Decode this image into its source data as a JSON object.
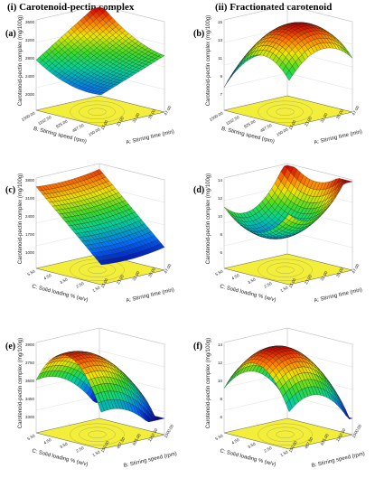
{
  "figure": {
    "col_left_title": "(i) Carotenoid-pectin complex",
    "col_right_title": "(ii) Fractionated carotenoid"
  },
  "chart_data": [
    {
      "panel": "(a)",
      "type": "surface",
      "zlabel": "Carotenoid-pectin complex (mg/100g)",
      "xlabel": "A: Stirring time (min)",
      "ylabel": "B: Stirring speed (rpm)",
      "z_ticks": [
        "2000",
        "2400",
        "2800",
        "3200",
        "3600"
      ],
      "x_ticks": [
        "15.00",
        "23.00",
        "31.00",
        "39.00",
        "47.00"
      ],
      "y_ticks": [
        "150.00",
        "487.50",
        "825.00",
        "1162.50",
        "1500.00"
      ],
      "shape": "saddle",
      "zlim": [
        1800,
        3700
      ],
      "colormap": "blue-green-yellow-red"
    },
    {
      "panel": "(b)",
      "type": "surface",
      "zlabel": "Carotenoid-pectin complex (mg/100g)",
      "xlabel": "A: Stirring time (min)",
      "ylabel": "B: Stirring speed (rpm)",
      "z_ticks": [
        "7",
        "9",
        "11",
        "13",
        "15"
      ],
      "x_ticks": [
        "15.00",
        "23.00",
        "31.00",
        "39.00",
        "47.00"
      ],
      "y_ticks": [
        "150.00",
        "487.50",
        "825.00",
        "1162.50",
        "1500.00"
      ],
      "shape": "dome",
      "zlim": [
        6,
        16
      ],
      "colormap": "blue-green-yellow-red"
    },
    {
      "panel": "(c)",
      "type": "surface",
      "zlabel": "Carotenoid-pectin complex (mg/100g)",
      "xlabel": "A: Stirring time (min)",
      "ylabel": "C: Solid loading % (w/v)",
      "z_ticks": [
        "1000",
        "1700",
        "2400",
        "3100",
        "3800"
      ],
      "x_ticks": [
        "15.00",
        "23.00",
        "31.00",
        "39.00",
        "47.00"
      ],
      "y_ticks": [
        "1.50",
        "2.50",
        "3.50",
        "4.50",
        "5.50"
      ],
      "shape": "ramp",
      "zlim": [
        700,
        4000
      ],
      "colormap": "blue-green-yellow-red"
    },
    {
      "panel": "(d)",
      "type": "surface",
      "zlabel": "Carotenoid-pectin complex (mg/100g)",
      "xlabel": "A: Stirring time (min)",
      "ylabel": "C: Solid loading % (w/v)",
      "z_ticks": [
        "6",
        "8",
        "10",
        "12",
        "14"
      ],
      "x_ticks": [
        "15.00",
        "23.00",
        "31.00",
        "39.00",
        "47.00"
      ],
      "y_ticks": [
        "1.50",
        "2.50",
        "3.50",
        "4.50",
        "5.50"
      ],
      "shape": "bowl",
      "zlim": [
        5,
        15
      ],
      "colormap": "blue-green-yellow-red"
    },
    {
      "panel": "(e)",
      "type": "surface",
      "zlabel": "Carotenoid-pectin complex (mg/100g)",
      "xlabel": "B: Stirring speed (rpm)",
      "ylabel": "C: Solid loading % (w/v)",
      "z_ticks": [
        "3300",
        "3450",
        "3600",
        "3750",
        "3900"
      ],
      "x_ticks": [
        "150.00",
        "487.50",
        "825.00",
        "1162.50",
        "1500.00"
      ],
      "y_ticks": [
        "1.50",
        "2.50",
        "3.50",
        "4.50",
        "5.50"
      ],
      "shape": "ridge",
      "zlim": [
        3250,
        3950
      ],
      "colormap": "blue-green-yellow-red"
    },
    {
      "panel": "(f)",
      "type": "surface",
      "zlabel": "Carotenoid-pectin complex (mg/100g)",
      "xlabel": "B: Stirring speed (rpm)",
      "ylabel": "C: Solid loading % (w/v)",
      "z_ticks": [
        "6",
        "8",
        "10",
        "12",
        "14"
      ],
      "x_ticks": [
        "150.00",
        "487.50",
        "825.00",
        "1162.50",
        "1500.00"
      ],
      "y_ticks": [
        "1.50",
        "2.50",
        "3.50",
        "4.50",
        "5.50"
      ],
      "shape": "tilted-dome",
      "zlim": [
        5,
        15
      ],
      "colormap": "blue-green-yellow-red"
    }
  ]
}
